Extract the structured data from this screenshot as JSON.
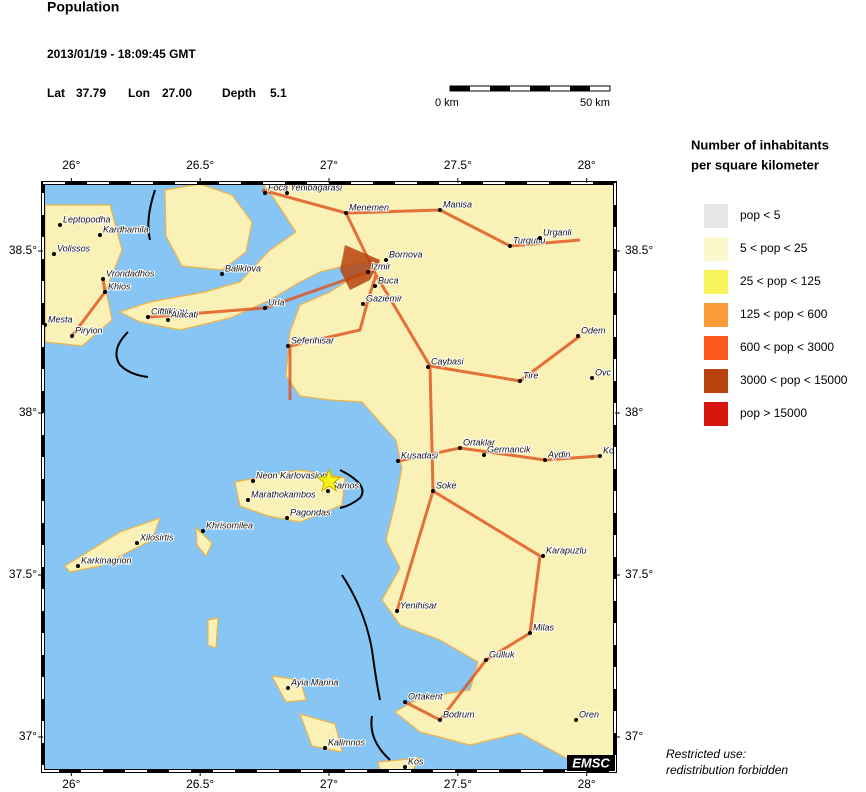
{
  "header": {
    "title": "Population",
    "datetime": "2013/01/19 - 18:09:45 GMT",
    "lat_label": "Lat",
    "lat": 37.79,
    "lon_label": "Lon",
    "lon": {
      "value": 27.0,
      "label": "27.00"
    },
    "depth_label": "Depth",
    "depth": 5.1
  },
  "scale_bar": {
    "start_label": "0 km",
    "end_label": "50 km"
  },
  "map": {
    "xlim": [
      25.89,
      28.11
    ],
    "ylim": [
      36.895,
      38.71
    ],
    "xticks": [
      {
        "value": 26,
        "label": "26°"
      },
      {
        "value": 26.5,
        "label": "26.5°"
      },
      {
        "value": 27,
        "label": "27°"
      },
      {
        "value": 27.5,
        "label": "27.5°"
      },
      {
        "value": 28,
        "label": "28°"
      }
    ],
    "yticks": [
      {
        "value": 37,
        "label": "37°"
      },
      {
        "value": 37.5,
        "label": "37.5°"
      },
      {
        "value": 38,
        "label": "38°"
      },
      {
        "value": 38.5,
        "label": "38.5°"
      }
    ],
    "places": [
      "Foca",
      "Yenibagarasi",
      "Menemen",
      "Manisa",
      "Leptopodha",
      "Kardhamila",
      "Volissos",
      "Bornova",
      "Turgutlu",
      "Urganli",
      "Izmir",
      "Buca",
      "Vrondadhos",
      "Khios",
      "Baliklova",
      "Gaziemir",
      "Urla",
      "Ciftlikkoy",
      "Alacati",
      "Mesta",
      "Piryion",
      "Odem",
      "Seferihisar",
      "Caybasi",
      "Tire",
      "Ovc",
      "Ortaklar",
      "Germancik",
      "Aydin",
      "Ko",
      "Kusadasi",
      "Neon Karlovasion",
      "Samos",
      "Marathokambos",
      "Pagondas",
      "Soke",
      "Khrisomilea",
      "Xilosirtis",
      "Karkinagrion",
      "Karapuzlu",
      "Yenihisar",
      "Milas",
      "Gulluk",
      "Ayia Marina",
      "Ortakent",
      "Bodrum",
      "Oren",
      "Kalimnos",
      "Kos"
    ],
    "badge": "EMSC"
  },
  "legend": {
    "title": [
      "Number of inhabitants",
      "per square kilometer"
    ],
    "items": [
      {
        "label": "pop < 5",
        "color": "#e6e6e6"
      },
      {
        "label": "5 < pop < 25",
        "color": "#fbf8cc"
      },
      {
        "label": "25 < pop < 125",
        "color": "#f8f55c"
      },
      {
        "label": "125 < pop < 600",
        "color": "#fb9b3a"
      },
      {
        "label": "600 < pop < 3000",
        "color": "#fb5a1a"
      },
      {
        "label": "3000 < pop < 15000",
        "color": "#b8430f"
      },
      {
        "label": "pop > 15000",
        "color": "#d8140e"
      }
    ]
  },
  "note": [
    "Restricted use:",
    "redistribution forbidden"
  ]
}
